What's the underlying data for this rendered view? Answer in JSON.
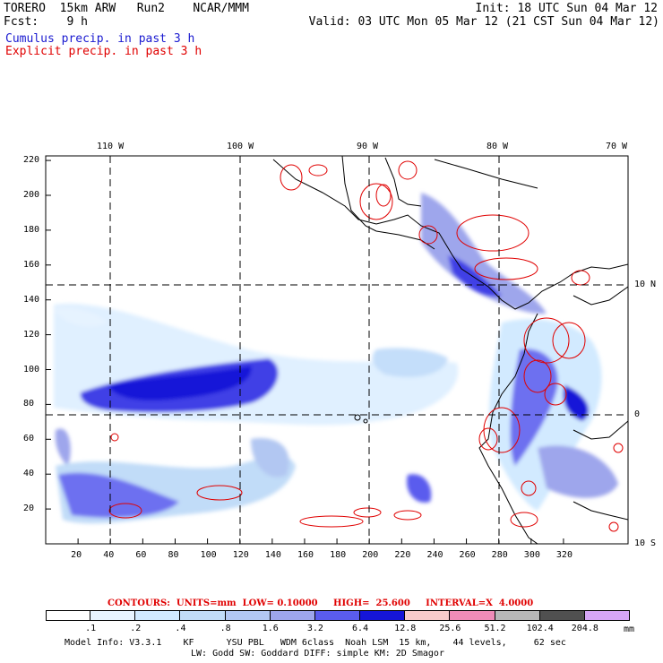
{
  "header": {
    "title": "TORERO  15km ARW   Run2    NCAR/MMM",
    "init": "Init: 18 UTC Sun 04 Mar 12",
    "fcst": "Fcst:    9 h",
    "valid": "Valid: 03 UTC Mon 05 Mar 12 (21 CST Sun 04 Mar 12)",
    "field1": "Cumulus precip. in past 3 h",
    "field2": "Explicit precip. in past 3 h"
  },
  "map": {
    "lon_labels": [
      "110 W",
      "100 W",
      "90 W",
      "80 W",
      "70 W"
    ],
    "lat_labels": [
      "10 N",
      "0",
      "10 S"
    ],
    "x_ticks": [
      "20",
      "40",
      "60",
      "80",
      "100",
      "120",
      "140",
      "160",
      "180",
      "200",
      "220",
      "240",
      "260",
      "280",
      "300",
      "320"
    ],
    "y_ticks": [
      "20",
      "40",
      "60",
      "80",
      "100",
      "120",
      "140",
      "160",
      "180",
      "200",
      "220"
    ]
  },
  "contours": {
    "label": "CONTOURS:  UNITS=mm  LOW= 0.10000     HIGH=  25.600     INTERVAL=X  4.0000"
  },
  "colorbar": {
    "labels": [
      ".1",
      ".2",
      ".4",
      ".8",
      "1.6",
      "3.2",
      "6.4",
      "12.8",
      "25.6",
      "51.2",
      "102.4",
      "204.8"
    ],
    "unit": "mm",
    "colors": [
      "#ffffff",
      "#e8f4ff",
      "#d2eaff",
      "#c1dcf8",
      "#b2c7f2",
      "#9ea6ec",
      "#5a5cee",
      "#1515d8",
      "#f8cccc",
      "#f08cb8",
      "#b8b8b8",
      "#505050",
      "#d6a6f6"
    ]
  },
  "footer": {
    "line1": "Model Info: V3.3.1    KF      YSU PBL   WDM 6class  Noah LSM  15 km,    44 levels,     62 sec",
    "line2": "LW: Godd SW: Goddard DIFF: simple KM: 2D Smagor"
  }
}
